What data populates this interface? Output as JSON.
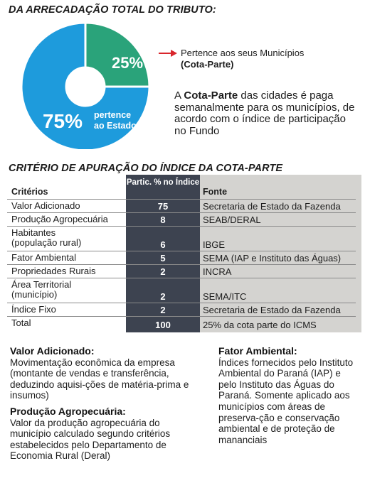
{
  "heading1": "DA ARRECADAÇÃO TOTAL DO TRIBUTO:",
  "pie": {
    "slices": [
      {
        "percent_label": "25%",
        "value": 25,
        "color": "#2aa37a"
      },
      {
        "percent_label": "75%",
        "value": 75,
        "color": "#1e9bdc",
        "label_line1": "pertence",
        "label_line2": "ao Estado"
      }
    ]
  },
  "callout1_line1": "Pertence aos seus Municípios",
  "callout1_line2": "(Cota-Parte)",
  "callout2": {
    "prefix": "A ",
    "bold": "Cota-Parte",
    "rest": " das cidades é paga semanalmente para os municípios, de acordo com o índice de participação no Fundo"
  },
  "heading2": "CRITÉRIO DE APURAÇÃO DO ÍNDICE DA COTA-PARTE",
  "table": {
    "headers": {
      "criterio": "Critérios",
      "part": "Partic. % no Índice",
      "fonte": "Fonte"
    },
    "rows": [
      {
        "criterio": "Valor Adicionado",
        "part": "75",
        "fonte": "Secretaria de Estado da Fazenda"
      },
      {
        "criterio": "Produção Agropecuária",
        "part": "8",
        "fonte": "SEAB/DERAL"
      },
      {
        "criterio": "Habitantes\n(população rural)",
        "part": "6",
        "fonte": "IBGE"
      },
      {
        "criterio": "Fator Ambiental",
        "part": "5",
        "fonte": "SEMA (IAP e Instituto das Águas)"
      },
      {
        "criterio": "Propriedades Rurais",
        "part": "2",
        "fonte": "INCRA"
      },
      {
        "criterio": "Área Territorial\n(município)",
        "part": "2",
        "fonte": "SEMA/ITC"
      },
      {
        "criterio": "Índice Fixo",
        "part": "2",
        "fonte": "Secretaria de Estado da Fazenda"
      },
      {
        "criterio": "Total",
        "part": "100",
        "fonte": "25% da cota parte do ICMS"
      }
    ]
  },
  "valor_adicionado": {
    "title": "Valor Adicionado:",
    "body": "Movimentação econômica da empresa (montante de vendas e transferência, deduzindo aquisi-ções de matéria-prima e insumos)"
  },
  "producao": {
    "title": "Produção Agropecuária:",
    "body": "Valor da produção agropecuária do município calculado segundo critérios estabelecidos pelo Departamento de Economia Rural (Deral)"
  },
  "fator": {
    "title": "Fator Ambiental:",
    "body": "Índices fornecidos pelo Instituto Ambiental do Paraná (IAP) e pelo Instituto das Águas do Paraná. Somente aplicado aos municípios com áreas de preserva-ção e conservação ambiental e de proteção de mananciais"
  }
}
